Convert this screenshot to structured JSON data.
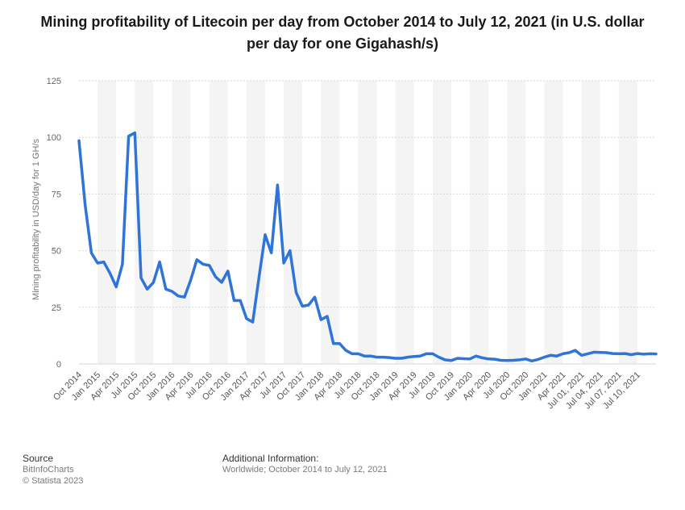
{
  "title": "Mining profitability of Litecoin per day from October 2014 to July 12, 2021 (in U.S. dollar per day for one Gigahash/s)",
  "chart_data": {
    "type": "line",
    "title": "Mining profitability of Litecoin per day from October 2014 to July 12, 2021 (in U.S. dollar per day for one Gigahash/s)",
    "xlabel": "",
    "ylabel": "Mining profitability in USD/day for 1 GH/s",
    "ylim": [
      0,
      125
    ],
    "yticks": [
      0,
      25,
      50,
      75,
      100,
      125
    ],
    "grid": true,
    "line_color": "#2f74d8",
    "xtick_labels": [
      "Oct 2014",
      "Jan 2015",
      "Apr 2015",
      "Jul 2015",
      "Oct 2015",
      "Jan 2016",
      "Apr 2016",
      "Jul 2016",
      "Oct 2016",
      "Jan 2017",
      "Apr 2017",
      "Jul 2017",
      "Oct 2017",
      "Jan 2018",
      "Apr 2018",
      "Jul 2018",
      "Oct 2018",
      "Jan 2019",
      "Apr 2019",
      "Jul 2019",
      "Oct 2019",
      "Jan 2020",
      "Apr 2020",
      "Jul 2020",
      "Oct 2020",
      "Jan 2021",
      "Apr 2021",
      "Jul 01, 2021",
      "Jul 04, 2021",
      "Jul 07, 2021",
      "Jul 10, 2021"
    ],
    "series": [
      {
        "name": "Mining profitability",
        "values": [
          98.5,
          70,
          49,
          44.5,
          45,
          40,
          34,
          44,
          100.5,
          102,
          38,
          33,
          36,
          45,
          33,
          32,
          30,
          29.5,
          37,
          46,
          44,
          43.5,
          38.5,
          36,
          41,
          28,
          28,
          20,
          18.5,
          38,
          57,
          49,
          79,
          44.5,
          50,
          31.5,
          25.5,
          26,
          29.5,
          19.5,
          21,
          9,
          9,
          6,
          4.5,
          4.5,
          3.5,
          3.5,
          3,
          3,
          2.8,
          2.5,
          2.5,
          3,
          3.3,
          3.5,
          4.5,
          4.5,
          3,
          1.8,
          1.5,
          2.5,
          2.3,
          2.2,
          3.5,
          2.7,
          2.2,
          2.1,
          1.6,
          1.5,
          1.6,
          1.8,
          2.2,
          1.3,
          2,
          3,
          3.8,
          3.5,
          4.5,
          5,
          6,
          3.8,
          4.5,
          5.2,
          5.1,
          5,
          4.6,
          4.5,
          4.6,
          4.1,
          4.6,
          4.3,
          4.5,
          4.4
        ]
      }
    ]
  },
  "footer": {
    "source_heading": "Source",
    "source_lines": [
      "BitInfoCharts",
      "© Statista 2023"
    ],
    "info_heading": "Additional Information:",
    "info_text": "Worldwide; October 2014 to July 12, 2021"
  }
}
